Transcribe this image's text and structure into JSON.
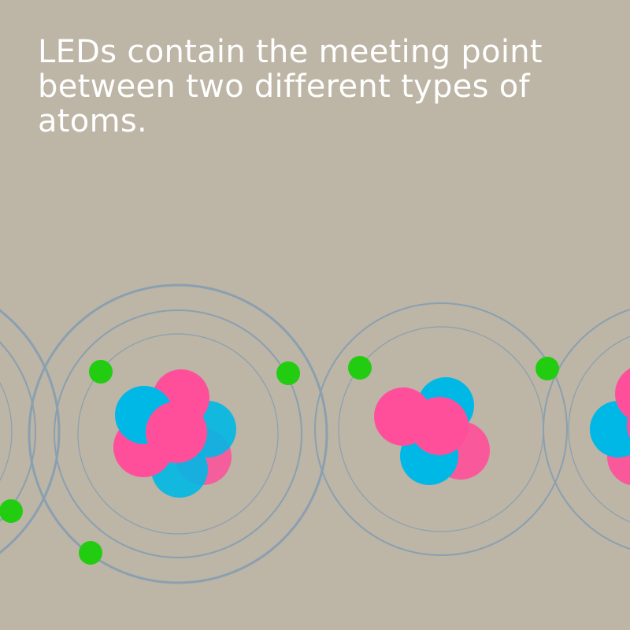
{
  "caption": "LEDs contain the meeting point between two different types of atoms.",
  "colors": {
    "background": "#bdb5a6",
    "orbit": "#8aa0b0",
    "electron": "#22cc11",
    "proton": "#ff4f9a",
    "neutron": "#00b8e6"
  },
  "atoms": [
    {
      "name": "atom-left-partial",
      "electrons": 1
    },
    {
      "name": "atom-1",
      "electrons": 3
    },
    {
      "name": "atom-2",
      "electrons": 1
    },
    {
      "name": "atom-right-partial",
      "electrons": 1
    }
  ]
}
